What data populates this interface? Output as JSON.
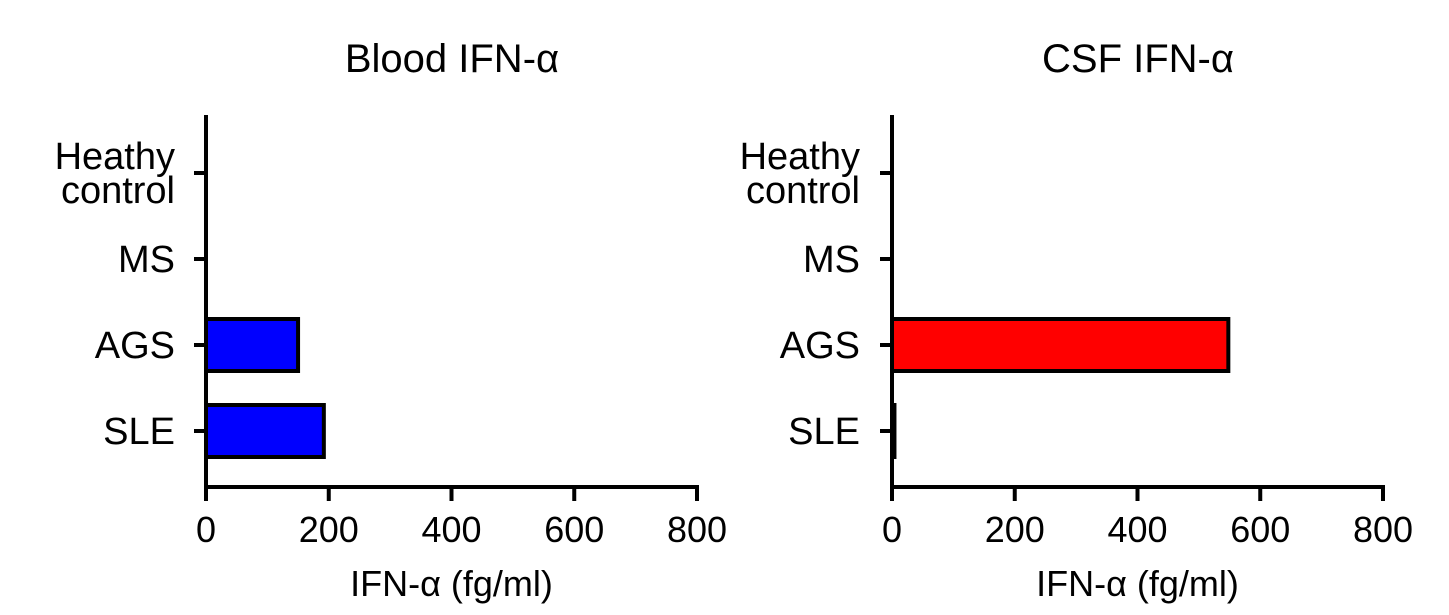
{
  "chart_data": [
    {
      "type": "bar",
      "orientation": "horizontal",
      "title": "Blood IFN-α",
      "xlabel": "IFN-α (fg/ml)",
      "ylabel": "",
      "categories": [
        [
          "Heathy",
          "control"
        ],
        [
          "MS"
        ],
        [
          "AGS"
        ],
        [
          "SLE"
        ]
      ],
      "values": [
        0,
        0,
        150,
        192
      ],
      "xlim": [
        0,
        800
      ],
      "xticks": [
        0,
        200,
        400,
        600,
        800
      ],
      "xtick_labels": [
        "0",
        "200",
        "400",
        "600",
        "800"
      ],
      "bar_color": "#0000ff",
      "grid": false,
      "legend": "none"
    },
    {
      "type": "bar",
      "orientation": "horizontal",
      "title": "CSF IFN-α",
      "xlabel": "IFN-α (fg/ml)",
      "ylabel": "",
      "categories": [
        [
          "Heathy",
          "control"
        ],
        [
          "MS"
        ],
        [
          "AGS"
        ],
        [
          "SLE"
        ]
      ],
      "values": [
        0,
        0,
        548,
        4
      ],
      "xlim": [
        0,
        800
      ],
      "xticks": [
        0,
        200,
        400,
        600,
        800
      ],
      "xtick_labels": [
        "0",
        "200",
        "400",
        "600",
        "800"
      ],
      "bar_color": "#ff0000",
      "grid": false,
      "legend": "none"
    }
  ]
}
